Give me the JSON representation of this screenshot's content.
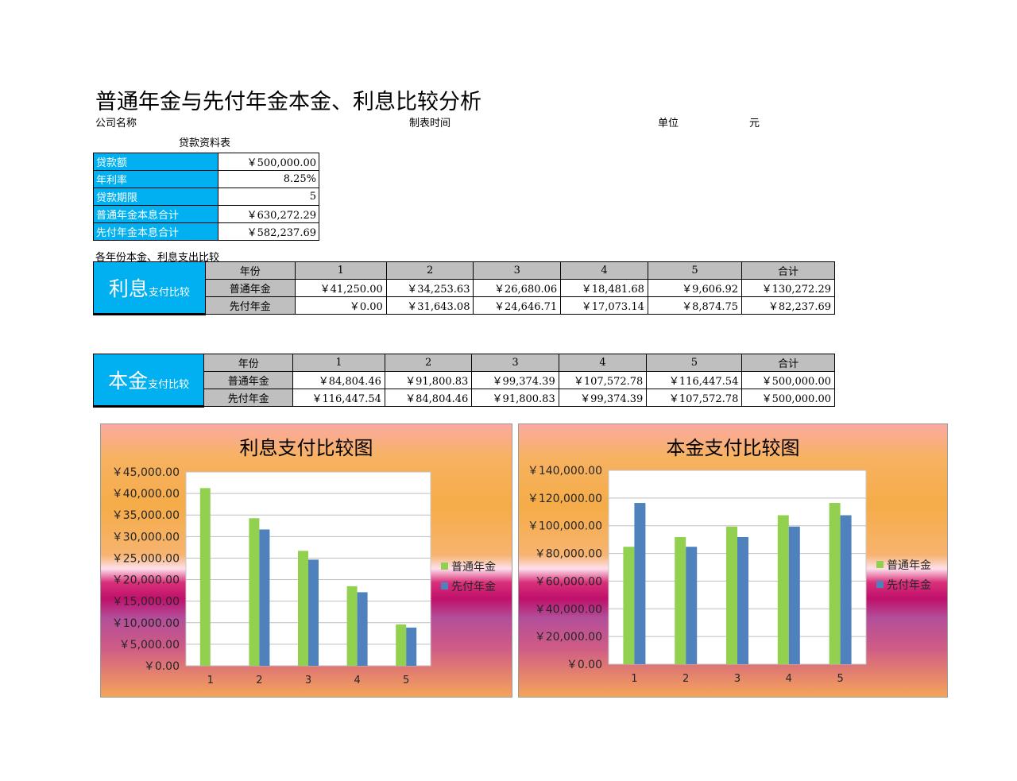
{
  "title": "普通年金与先付年金本金、利息比较分析",
  "header": {
    "company_label": "公司名称",
    "date_label": "制表时间",
    "unit_label": "单位",
    "unit_value": "元"
  },
  "loan": {
    "section_title": "贷款资料表",
    "rows": [
      {
        "label": "贷款额",
        "value": "￥500,000.00"
      },
      {
        "label": "年利率",
        "value": "8.25%"
      },
      {
        "label": "贷款期限",
        "value": "5"
      },
      {
        "label": "普通年金本息合计",
        "value": "￥630,272.29"
      },
      {
        "label": "先付年金本息合计",
        "value": "￥582,237.69"
      }
    ]
  },
  "compare_section_title": "各年份本金、利息支出比较",
  "interest_table": {
    "label_big": "利息",
    "label_small": "支付比较",
    "header": [
      "年份",
      "1",
      "2",
      "3",
      "4",
      "5",
      "合计"
    ],
    "rows": [
      {
        "name": "普通年金",
        "cells": [
          "￥41,250.00",
          "￥34,253.63",
          "￥26,680.06",
          "￥18,481.68",
          "￥9,606.92",
          "￥130,272.29"
        ]
      },
      {
        "name": "先付年金",
        "cells": [
          "￥0.00",
          "￥31,643.08",
          "￥24,646.71",
          "￥17,073.14",
          "￥8,874.75",
          "￥82,237.69"
        ]
      }
    ]
  },
  "principal_table": {
    "label_big": "本金",
    "label_small": "支付比较",
    "header": [
      "年份",
      "1",
      "2",
      "3",
      "4",
      "5",
      "合计"
    ],
    "rows": [
      {
        "name": "普通年金",
        "cells": [
          "￥84,804.46",
          "￥91,800.83",
          "￥99,374.39",
          "￥107,572.78",
          "￥116,447.54",
          "￥500,000.00"
        ]
      },
      {
        "name": "先付年金",
        "cells": [
          "￥116,447.54",
          "￥84,804.46",
          "￥91,800.83",
          "￥99,374.39",
          "￥107,572.78",
          "￥500,000.00"
        ]
      }
    ]
  },
  "chart_data": [
    {
      "type": "bar",
      "title": "利息支付比较图",
      "categories": [
        "1",
        "2",
        "3",
        "4",
        "5"
      ],
      "series": [
        {
          "name": "普通年金",
          "values": [
            41250.0,
            34253.63,
            26680.06,
            18481.68,
            9606.92
          ],
          "color": "#92d050"
        },
        {
          "name": "先付年金",
          "values": [
            0.0,
            31643.08,
            24646.71,
            17073.14,
            8874.75
          ],
          "color": "#4f81bd"
        }
      ],
      "ylim": [
        0,
        45000
      ],
      "yticks": [
        "￥0.00",
        "￥5,000.00",
        "￥10,000.00",
        "￥15,000.00",
        "￥20,000.00",
        "￥25,000.00",
        "￥30,000.00",
        "￥35,000.00",
        "￥40,000.00",
        "￥45,000.00"
      ],
      "grid": true,
      "legend": "right"
    },
    {
      "type": "bar",
      "title": "本金支付比较图",
      "categories": [
        "1",
        "2",
        "3",
        "4",
        "5"
      ],
      "series": [
        {
          "name": "普通年金",
          "values": [
            84804.46,
            91800.83,
            99374.39,
            107572.78,
            116447.54
          ],
          "color": "#92d050"
        },
        {
          "name": "先付年金",
          "values": [
            116447.54,
            84804.46,
            91800.83,
            99374.39,
            107572.78
          ],
          "color": "#4f81bd"
        }
      ],
      "ylim": [
        0,
        140000
      ],
      "yticks": [
        "￥0.00",
        "￥20,000.00",
        "￥40,000.00",
        "￥60,000.00",
        "￥80,000.00",
        "￥100,000.00",
        "￥120,000.00",
        "￥140,000.00"
      ],
      "grid": true,
      "legend": "right"
    }
  ]
}
